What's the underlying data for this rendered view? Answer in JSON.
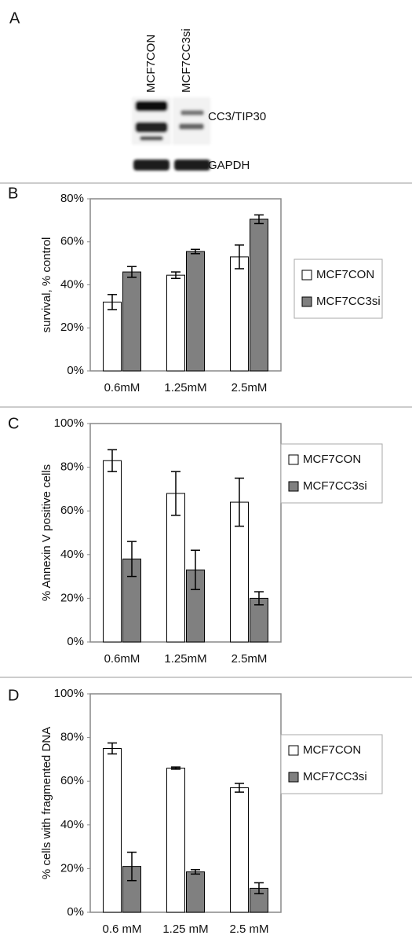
{
  "blot": {
    "panel": "A",
    "lanes": [
      "MCF7CON",
      "MCF7CC3si"
    ],
    "bands": [
      "CC3/TIP30",
      "GAPDH"
    ]
  },
  "chart_data": [
    {
      "type": "bar",
      "panel": "B",
      "ylabel": "survival, % control",
      "categories": [
        "0.6mM",
        "1.25mM",
        "2.5mM"
      ],
      "series": [
        {
          "name": "MCF7CON",
          "color": "#ffffff",
          "values": [
            32,
            44.5,
            53
          ],
          "errors": [
            3.5,
            1.5,
            5.5
          ]
        },
        {
          "name": "MCF7CC3si",
          "color": "#808080",
          "values": [
            46,
            55.5,
            70.5
          ],
          "errors": [
            2.5,
            1,
            2
          ]
        }
      ],
      "ylim": [
        0,
        80
      ],
      "yticks": [
        {
          "value": 0,
          "label": "0%"
        },
        {
          "value": 20,
          "label": "20%"
        },
        {
          "value": 40,
          "label": "40%"
        },
        {
          "value": 60,
          "label": "60%"
        },
        {
          "value": 80,
          "label": "80%"
        }
      ],
      "legend": "right"
    },
    {
      "type": "bar",
      "panel": "C",
      "ylabel": "% Annexin V positive cells",
      "categories": [
        "0.6mM",
        "1.25mM",
        "2.5mM"
      ],
      "series": [
        {
          "name": "MCF7CON",
          "color": "#ffffff",
          "values": [
            83,
            68,
            64
          ],
          "errors": [
            5,
            10,
            11
          ]
        },
        {
          "name": "MCF7CC3si",
          "color": "#808080",
          "values": [
            38,
            33,
            20
          ],
          "errors": [
            8,
            9,
            3
          ]
        }
      ],
      "ylim": [
        0,
        100
      ],
      "yticks": [
        {
          "value": 0,
          "label": "0%"
        },
        {
          "value": 20,
          "label": "20%"
        },
        {
          "value": 40,
          "label": "40%"
        },
        {
          "value": 60,
          "label": "60%"
        },
        {
          "value": 80,
          "label": "80%"
        },
        {
          "value": 100,
          "label": "100%"
        }
      ],
      "legend": "right"
    },
    {
      "type": "bar",
      "panel": "D",
      "ylabel": "% cells with fragmented DNA",
      "categories": [
        "0.6 mM",
        "1.25 mM",
        "2.5 mM"
      ],
      "series": [
        {
          "name": "MCF7CON",
          "color": "#ffffff",
          "values": [
            75,
            66,
            57
          ],
          "errors": [
            2.5,
            0.5,
            2
          ]
        },
        {
          "name": "MCF7CC3si",
          "color": "#808080",
          "values": [
            21,
            18.5,
            11
          ],
          "errors": [
            6.5,
            1,
            2.5
          ]
        }
      ],
      "ylim": [
        0,
        100
      ],
      "yticks": [
        {
          "value": 0,
          "label": "0%"
        },
        {
          "value": 20,
          "label": "20%"
        },
        {
          "value": 40,
          "label": "40%"
        },
        {
          "value": 60,
          "label": "60%"
        },
        {
          "value": 80,
          "label": "80%"
        },
        {
          "value": 100,
          "label": "100%"
        }
      ],
      "legend": "right"
    }
  ]
}
